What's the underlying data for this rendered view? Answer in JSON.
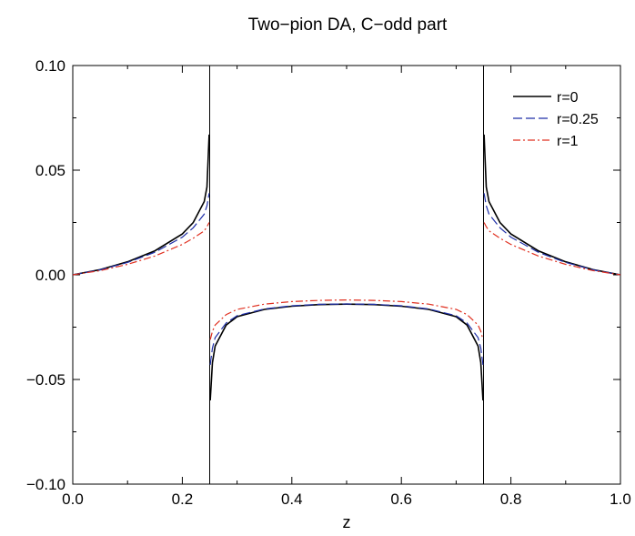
{
  "chart_data": {
    "type": "line",
    "title": "Two−pion DA, C−odd part",
    "xlabel": "z",
    "ylabel": "",
    "xlim": [
      0.0,
      1.0
    ],
    "ylim": [
      -0.1,
      0.1
    ],
    "x_ticks": [
      {
        "value": 0.0,
        "label": "0.0"
      },
      {
        "value": 0.2,
        "label": "0.2"
      },
      {
        "value": 0.4,
        "label": "0.4"
      },
      {
        "value": 0.6,
        "label": "0.6"
      },
      {
        "value": 0.8,
        "label": "0.8"
      },
      {
        "value": 1.0,
        "label": "1.0"
      }
    ],
    "y_ticks": [
      {
        "value": -0.1,
        "label": "−0.10"
      },
      {
        "value": -0.05,
        "label": "−0.05"
      },
      {
        "value": 0.0,
        "label": "0.00"
      },
      {
        "value": 0.05,
        "label": "0.05"
      },
      {
        "value": 0.1,
        "label": "0.10"
      }
    ],
    "vertical_lines": [
      0.25,
      0.75
    ],
    "grid": false,
    "legend_position": "top-right",
    "series": [
      {
        "name": "r=0",
        "color": "#000000",
        "dash": "solid",
        "x": [
          0,
          0.05,
          0.1,
          0.15,
          0.2,
          0.22,
          0.24,
          0.245,
          0.249,
          0.251,
          0.255,
          0.26,
          0.28,
          0.3,
          0.35,
          0.4,
          0.45,
          0.5,
          0.55,
          0.6,
          0.65,
          0.7,
          0.72,
          0.74,
          0.745,
          0.749,
          0.751,
          0.755,
          0.76,
          0.78,
          0.8,
          0.85,
          0.9,
          0.95,
          1.0
        ],
        "y": [
          0,
          0.0025,
          0.0062,
          0.0115,
          0.0195,
          0.025,
          0.035,
          0.042,
          0.067,
          -0.06,
          -0.042,
          -0.034,
          -0.024,
          -0.02,
          -0.0165,
          -0.015,
          -0.0142,
          -0.014,
          -0.0142,
          -0.015,
          -0.0165,
          -0.02,
          -0.024,
          -0.034,
          -0.042,
          -0.06,
          0.067,
          0.042,
          0.035,
          0.025,
          0.0195,
          0.0115,
          0.0062,
          0.0025,
          0
        ]
      },
      {
        "name": "r=0.25",
        "color": "#1f2fa8",
        "dash": "long-dash",
        "x": [
          0,
          0.05,
          0.1,
          0.15,
          0.2,
          0.22,
          0.24,
          0.245,
          0.249,
          0.251,
          0.255,
          0.26,
          0.28,
          0.3,
          0.35,
          0.4,
          0.45,
          0.5,
          0.55,
          0.6,
          0.65,
          0.7,
          0.72,
          0.74,
          0.745,
          0.749,
          0.751,
          0.755,
          0.76,
          0.78,
          0.8,
          0.85,
          0.9,
          0.95,
          1.0
        ],
        "y": [
          0,
          0.0024,
          0.0059,
          0.0108,
          0.018,
          0.0225,
          0.029,
          0.033,
          0.039,
          -0.043,
          -0.035,
          -0.03,
          -0.023,
          -0.0195,
          -0.0163,
          -0.0148,
          -0.0141,
          -0.0139,
          -0.0141,
          -0.0148,
          -0.0163,
          -0.0195,
          -0.023,
          -0.03,
          -0.035,
          -0.043,
          0.039,
          0.033,
          0.029,
          0.0225,
          0.018,
          0.0108,
          0.0059,
          0.0024,
          0
        ]
      },
      {
        "name": "r=1",
        "color": "#e03020",
        "dash": "dash-dot",
        "x": [
          0,
          0.05,
          0.1,
          0.15,
          0.2,
          0.22,
          0.24,
          0.245,
          0.249,
          0.251,
          0.255,
          0.26,
          0.28,
          0.3,
          0.35,
          0.4,
          0.45,
          0.5,
          0.55,
          0.6,
          0.65,
          0.7,
          0.72,
          0.74,
          0.745,
          0.749,
          0.751,
          0.755,
          0.76,
          0.78,
          0.8,
          0.85,
          0.9,
          0.95,
          1.0
        ],
        "y": [
          0,
          0.002,
          0.005,
          0.009,
          0.0145,
          0.0175,
          0.021,
          0.023,
          0.025,
          -0.031,
          -0.027,
          -0.024,
          -0.019,
          -0.0165,
          -0.014,
          -0.0128,
          -0.0122,
          -0.012,
          -0.0122,
          -0.0128,
          -0.014,
          -0.0165,
          -0.019,
          -0.024,
          -0.027,
          -0.031,
          0.025,
          0.023,
          0.021,
          0.0175,
          0.0145,
          0.009,
          0.005,
          0.002,
          0
        ]
      }
    ]
  }
}
